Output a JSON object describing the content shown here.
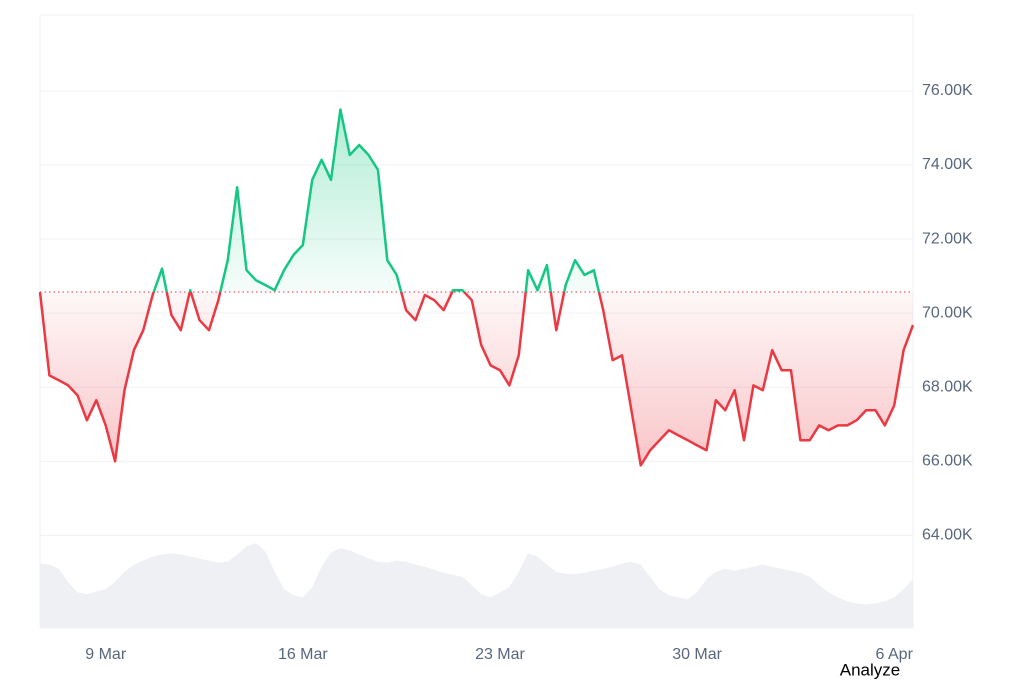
{
  "chart_data": {
    "type": "line",
    "x": [
      0,
      1,
      2,
      3,
      4,
      5,
      6,
      7,
      8,
      9,
      10,
      11,
      12,
      13,
      14,
      15,
      16,
      17,
      18,
      19,
      20,
      21,
      22,
      23,
      24,
      25,
      26,
      27,
      28,
      29,
      30,
      31,
      32,
      33,
      34,
      35,
      36,
      37,
      38,
      39,
      40,
      41,
      42,
      43,
      44,
      45,
      46,
      47,
      48,
      49,
      50,
      51,
      52,
      53,
      54,
      55,
      56,
      57,
      58,
      59,
      60,
      61,
      62,
      63,
      64,
      65,
      66,
      67,
      68,
      69,
      70,
      71,
      72,
      73,
      74,
      75,
      76,
      77,
      78,
      79,
      80,
      81,
      82,
      83,
      84,
      85,
      86,
      87,
      88,
      89,
      90,
      91,
      92,
      93
    ],
    "series": [
      {
        "values": [
          70570,
          68320,
          68190,
          68050,
          67780,
          67110,
          67650,
          66970,
          66000,
          67920,
          69000,
          69540,
          70490,
          71200,
          69950,
          69540,
          70620,
          69810,
          69540,
          70350,
          71430,
          73400,
          71160,
          70890,
          70760,
          70620,
          71160,
          71570,
          71840,
          73600,
          74140,
          73600,
          75500,
          74270,
          74540,
          74270,
          73870,
          71430,
          71030,
          70080,
          69810,
          70490,
          70350,
          70080,
          70620,
          70620,
          70350,
          69140,
          68590,
          68460,
          68050,
          68860,
          71160,
          70620,
          71300,
          69540,
          70760,
          71430,
          71030,
          71160,
          70080,
          68730,
          68860,
          67380,
          65890,
          66300,
          66570,
          66840,
          66700,
          66570,
          66430,
          66300,
          67650,
          67380,
          67920,
          66570,
          68050,
          67920,
          69000,
          68460,
          68460,
          66570,
          66570,
          66970,
          66840,
          66970,
          66970,
          67110,
          67380,
          67380,
          66970,
          67510,
          69000,
          69680
        ]
      },
      {
        "axis": "y2",
        "color": "#eef0f3",
        "values": [
          63,
          62,
          58,
          45,
          35,
          33,
          36,
          38,
          45,
          55,
          62,
          66,
          70,
          72,
          73,
          72,
          70,
          68,
          66,
          64,
          65,
          72,
          80,
          83,
          75,
          55,
          38,
          32,
          30,
          40,
          60,
          74,
          78,
          76,
          72,
          68,
          65,
          64,
          66,
          65,
          62,
          60,
          57,
          54,
          52,
          50,
          42,
          33,
          30,
          35,
          40,
          55,
          73,
          70,
          62,
          55,
          53,
          53,
          54,
          56,
          58,
          60,
          63,
          65,
          62,
          50,
          38,
          32,
          30,
          28,
          35,
          48,
          55,
          58,
          56,
          58,
          60,
          62,
          60,
          58,
          56,
          54,
          50,
          42,
          35,
          30,
          26,
          24,
          23,
          24,
          26,
          30,
          38,
          48
        ]
      }
    ],
    "baseline": 70570,
    "color_above": "#16c784",
    "color_below": "#ea3943",
    "xlim": [
      0,
      93
    ],
    "xticks": [
      {
        "value": 7,
        "label": "9 Mar"
      },
      {
        "value": 28,
        "label": "16 Mar"
      },
      {
        "value": 49,
        "label": "23 Mar"
      },
      {
        "value": 70,
        "label": "30 Mar"
      },
      {
        "value": 91,
        "label": "6 Apr"
      }
    ],
    "ylim": [
      61500,
      78050
    ],
    "yticks": [
      {
        "value": 64000,
        "label": "64.00K"
      },
      {
        "value": 66000,
        "label": "66.00K"
      },
      {
        "value": 68000,
        "label": "68.00K"
      },
      {
        "value": 70000,
        "label": "70.00K"
      },
      {
        "value": 72000,
        "label": "72.00K"
      },
      {
        "value": 74000,
        "label": "74.00K"
      },
      {
        "value": 76000,
        "label": "76.00K"
      }
    ],
    "y2lim": [
      0,
      600
    ],
    "grid": true,
    "button": "Analyze"
  }
}
